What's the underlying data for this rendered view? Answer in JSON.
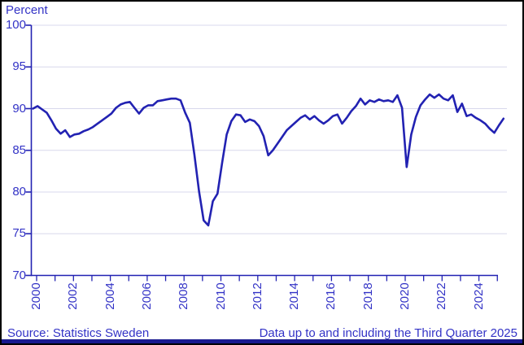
{
  "y_axis_title": "Percent",
  "footer": {
    "source": "Source: Statistics Sweden",
    "note": "Data up to and including the Third Quarter 2025"
  },
  "colors": {
    "line": "#2222b2",
    "axis": "#2222b2",
    "text": "#3333c6",
    "gridline": "#d8d8ec",
    "footer_bar": "#19198f",
    "frame_border": "#000000",
    "background": "#ffffff"
  },
  "chart_data": {
    "type": "line",
    "title": "",
    "ylabel": "Percent",
    "xlabel": "",
    "ylim": [
      70,
      100
    ],
    "y_ticks": [
      70,
      75,
      80,
      85,
      90,
      95,
      100
    ],
    "x_tick_year_start": 2000,
    "x_tick_year_end": 2025,
    "x_label_years": [
      "2000",
      "2002",
      "2004",
      "2006",
      "2008",
      "2010",
      "2012",
      "2014",
      "2016",
      "2018",
      "2020",
      "2022",
      "2024"
    ],
    "grid": "horizontal",
    "legend": "none",
    "series": [
      {
        "name": "Percent",
        "frequency": "quarterly",
        "start": "2000Q1",
        "end": "2025Q3",
        "values": [
          90.0,
          90.3,
          89.9,
          89.5,
          88.6,
          87.6,
          87.0,
          87.4,
          86.6,
          86.9,
          87.0,
          87.3,
          87.5,
          87.8,
          88.2,
          88.6,
          89.0,
          89.4,
          90.1,
          90.5,
          90.7,
          90.8,
          90.1,
          89.4,
          90.1,
          90.4,
          90.4,
          90.9,
          91.0,
          91.1,
          91.2,
          91.2,
          91.0,
          89.5,
          88.3,
          84.5,
          80.1,
          76.6,
          76.0,
          78.9,
          79.8,
          83.5,
          86.9,
          88.5,
          89.3,
          89.2,
          88.4,
          88.7,
          88.5,
          87.9,
          86.7,
          84.4,
          85.0,
          85.8,
          86.6,
          87.4,
          87.9,
          88.4,
          88.9,
          89.2,
          88.7,
          89.1,
          88.6,
          88.2,
          88.6,
          89.1,
          89.3,
          88.2,
          88.9,
          89.7,
          90.3,
          91.2,
          90.5,
          91.0,
          90.8,
          91.1,
          90.9,
          91.0,
          90.8,
          91.6,
          90.1,
          83.0,
          86.9,
          89.0,
          90.4,
          91.1,
          91.7,
          91.3,
          91.7,
          91.2,
          91.0,
          91.6,
          89.6,
          90.6,
          89.1,
          89.3,
          88.9,
          88.6,
          88.2,
          87.6,
          87.1,
          88.0,
          88.8
        ]
      }
    ]
  }
}
